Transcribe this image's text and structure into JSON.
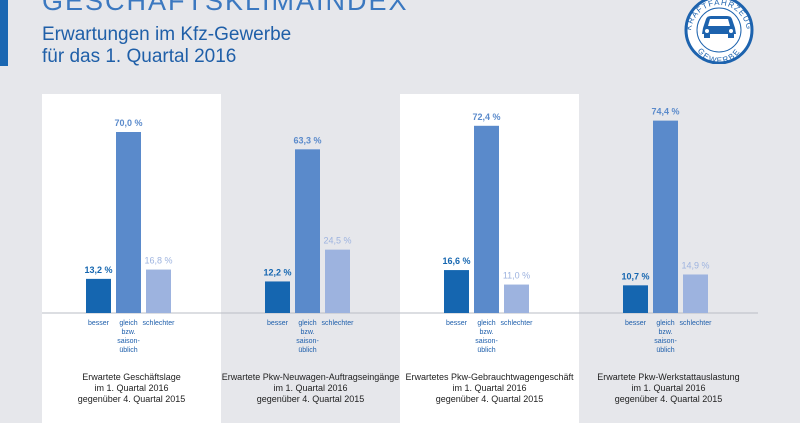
{
  "header": {
    "title": "GESCHÄFTSKLIMAINDEX",
    "subtitle_line1": "Erwartungen im Kfz-Gewerbe",
    "subtitle_line2": "für das 1. Quartal 2016"
  },
  "logo": {
    "text_top": "KRAFTFAHRZEUG",
    "text_bottom": "GEWERBE"
  },
  "colors": {
    "besser": "#1566b0",
    "gleich": "#5a8acb",
    "schlechter": "#9db3df",
    "panel": "#ffffff",
    "background": "#e6e7eb"
  },
  "chart_data": {
    "type": "bar",
    "unit": "%",
    "categories": [
      [
        "besser"
      ],
      [
        "gleich",
        "bzw.",
        "saison-",
        "üblich"
      ],
      [
        "schlechter"
      ]
    ],
    "ylim": [
      0,
      80
    ],
    "grid": false,
    "panels": [
      {
        "caption": [
          "Erwartete Geschäftslage",
          "im 1. Quartal 2016",
          "gegenüber 4. Quartal 2015"
        ],
        "values": [
          13.2,
          70.0,
          16.8
        ],
        "labels": [
          "13,2 %",
          "70,0 %",
          "16,8 %"
        ],
        "highlighted": true
      },
      {
        "caption": [
          "Erwartete Pkw-Neuwagen-Auftragseingänge",
          "im 1. Quartal 2016",
          "gegenüber 4. Quartal 2015"
        ],
        "values": [
          12.2,
          63.3,
          24.5
        ],
        "labels": [
          "12,2 %",
          "63,3 %",
          "24,5 %"
        ],
        "highlighted": false
      },
      {
        "caption": [
          "Erwartetes Pkw-Gebrauchtwagengeschäft",
          "im 1. Quartal 2016",
          "gegenüber 4. Quartal 2015"
        ],
        "values": [
          16.6,
          72.4,
          11.0
        ],
        "labels": [
          "16,6 %",
          "72,4 %",
          "11,0 %"
        ],
        "highlighted": true
      },
      {
        "caption": [
          "Erwartete Pkw-Werkstattauslastung",
          "im 1. Quartal 2016",
          "gegenüber 4. Quartal 2015"
        ],
        "values": [
          10.7,
          74.4,
          14.9
        ],
        "labels": [
          "10,7 %",
          "74,4 %",
          "14,9 %"
        ],
        "highlighted": false
      }
    ]
  }
}
